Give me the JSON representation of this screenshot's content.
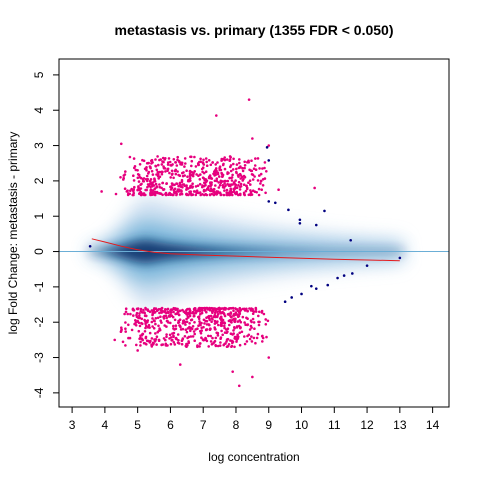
{
  "chart_data": {
    "type": "scatter",
    "title": "metastasis vs. primary (1355 FDR < 0.050)",
    "xlabel": "log concentration",
    "ylabel": "log Fold Change: metastasis - primary",
    "xlim": [
      2.6,
      14.5
    ],
    "ylim": [
      -4.4,
      5.45
    ],
    "x_ticks": [
      "3",
      "4",
      "5",
      "6",
      "7",
      "8",
      "9",
      "10",
      "11",
      "12",
      "13",
      "14"
    ],
    "y_ticks": [
      "-4",
      "-3",
      "-2",
      "-1",
      "0",
      "1",
      "2",
      "3",
      "4",
      "5"
    ],
    "grid": false,
    "legend": "none",
    "colors": {
      "significant": "#e6007e",
      "notable": "#000080",
      "density_dark": "#08306b",
      "density_light": "#c6dbef",
      "baseline": "#6baed6",
      "loess": "#e41a1c"
    },
    "density_band": {
      "x_range": [
        3.5,
        13.1
      ],
      "core_x": 5.3,
      "core_halfwidth_y": 0.32,
      "outer_halfwidth_y": 1.5
    },
    "baseline_y": 0,
    "loess_curve": [
      {
        "x": 3.6,
        "y": 0.36
      },
      {
        "x": 4.0,
        "y": 0.27
      },
      {
        "x": 4.5,
        "y": 0.15
      },
      {
        "x": 5.0,
        "y": 0.05
      },
      {
        "x": 5.5,
        "y": -0.02
      },
      {
        "x": 6.0,
        "y": -0.06
      },
      {
        "x": 7.0,
        "y": -0.1
      },
      {
        "x": 8.0,
        "y": -0.13
      },
      {
        "x": 9.0,
        "y": -0.16
      },
      {
        "x": 10.0,
        "y": -0.19
      },
      {
        "x": 11.0,
        "y": -0.22
      },
      {
        "x": 12.0,
        "y": -0.24
      },
      {
        "x": 13.0,
        "y": -0.26
      }
    ],
    "significant_clusters": [
      {
        "x_range": [
          4.3,
          9.1
        ],
        "y_range": [
          1.6,
          2.7
        ],
        "count": 620
      },
      {
        "x_range": [
          4.3,
          9.1
        ],
        "y_range": [
          -2.7,
          -1.6
        ],
        "count": 650
      }
    ],
    "significant_outliers": [
      {
        "x": 8.4,
        "y": 4.3
      },
      {
        "x": 7.4,
        "y": 3.85
      },
      {
        "x": 9.0,
        "y": 3.0
      },
      {
        "x": 8.5,
        "y": 3.2
      },
      {
        "x": 9.3,
        "y": 1.75
      },
      {
        "x": 10.4,
        "y": 1.8
      },
      {
        "x": 3.9,
        "y": 1.7
      },
      {
        "x": 4.5,
        "y": 3.05
      },
      {
        "x": 5.0,
        "y": -2.8
      },
      {
        "x": 8.1,
        "y": -3.8
      },
      {
        "x": 7.9,
        "y": -3.4
      },
      {
        "x": 8.5,
        "y": -3.55
      },
      {
        "x": 9.0,
        "y": -3.0
      },
      {
        "x": 6.3,
        "y": -3.2
      },
      {
        "x": 4.3,
        "y": -2.5
      }
    ],
    "blue_points": [
      {
        "x": 3.55,
        "y": 0.15
      },
      {
        "x": 8.95,
        "y": 2.95
      },
      {
        "x": 9.0,
        "y": 2.58
      },
      {
        "x": 9.0,
        "y": 1.42
      },
      {
        "x": 9.2,
        "y": 1.38
      },
      {
        "x": 9.6,
        "y": 1.18
      },
      {
        "x": 9.95,
        "y": 0.9
      },
      {
        "x": 9.95,
        "y": 0.8
      },
      {
        "x": 10.45,
        "y": 0.75
      },
      {
        "x": 10.7,
        "y": 1.15
      },
      {
        "x": 11.5,
        "y": 0.32
      },
      {
        "x": 12.0,
        "y": -0.4
      },
      {
        "x": 13.0,
        "y": -0.18
      },
      {
        "x": 11.1,
        "y": -0.75
      },
      {
        "x": 11.3,
        "y": -0.68
      },
      {
        "x": 11.55,
        "y": -0.62
      },
      {
        "x": 10.8,
        "y": -0.95
      },
      {
        "x": 10.45,
        "y": -1.05
      },
      {
        "x": 10.0,
        "y": -1.2
      },
      {
        "x": 9.7,
        "y": -1.3
      },
      {
        "x": 9.5,
        "y": -1.42
      },
      {
        "x": 10.3,
        "y": -0.98
      }
    ]
  }
}
